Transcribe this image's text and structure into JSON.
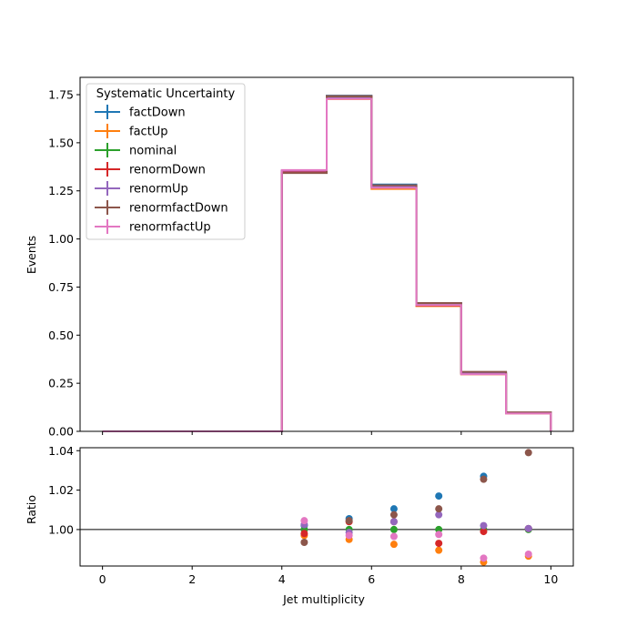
{
  "colors": {
    "factDown": "#1f77b4",
    "factUp": "#ff7f0e",
    "nominal": "#2ca02c",
    "renormDown": "#d62728",
    "renormUp": "#9467bd",
    "renormfactDown": "#8c564b",
    "renormfactUp": "#e377c2"
  },
  "chart_data": [
    {
      "type": "line",
      "subtype": "step-histogram",
      "xlabel": "",
      "ylabel": "Events",
      "xlim": [
        -0.5,
        10.5
      ],
      "ylim": [
        0,
        1.84
      ],
      "yticks": [
        0.0,
        0.25,
        0.5,
        0.75,
        1.0,
        1.25,
        1.5,
        1.75
      ],
      "ytick_labels": [
        "0.00",
        "0.25",
        "0.50",
        "0.75",
        "1.00",
        "1.25",
        "1.50",
        "1.75"
      ],
      "bin_edges": [
        0,
        1,
        2,
        3,
        4,
        5,
        6,
        7,
        8,
        9,
        10
      ],
      "legend": {
        "title": "Systematic Uncertainty",
        "placement": "top-left"
      },
      "series": [
        {
          "name": "factDown",
          "values": [
            0,
            0,
            0,
            0,
            1.355,
            1.745,
            1.283,
            0.667,
            0.307,
            0.097
          ]
        },
        {
          "name": "factUp",
          "values": [
            0,
            0,
            0,
            0,
            1.348,
            1.727,
            1.26,
            0.651,
            0.296,
            0.093
          ]
        },
        {
          "name": "nominal",
          "values": [
            0,
            0,
            0,
            0,
            1.352,
            1.735,
            1.27,
            0.659,
            0.301,
            0.095
          ]
        },
        {
          "name": "renormDown",
          "values": [
            0,
            0,
            0,
            0,
            1.349,
            1.742,
            1.275,
            0.654,
            0.301,
            0.096
          ]
        },
        {
          "name": "renormUp",
          "values": [
            0,
            0,
            0,
            0,
            1.355,
            1.732,
            1.275,
            0.665,
            0.302,
            0.095
          ]
        },
        {
          "name": "renormfactDown",
          "values": [
            0,
            0,
            0,
            0,
            1.343,
            1.743,
            1.279,
            0.667,
            0.309,
            0.099
          ]
        },
        {
          "name": "renormfactUp",
          "values": [
            0,
            0,
            0,
            0,
            1.358,
            1.728,
            1.266,
            0.656,
            0.297,
            0.093
          ]
        }
      ]
    },
    {
      "type": "scatter",
      "xlabel": "Jet multiplicity",
      "ylabel": "Ratio",
      "xlim": [
        -0.5,
        10.5
      ],
      "ylim": [
        0.9815,
        1.0415
      ],
      "xticks": [
        0,
        2,
        4,
        6,
        8,
        10
      ],
      "xtick_labels": [
        "0",
        "2",
        "4",
        "6",
        "8",
        "10"
      ],
      "yticks": [
        1.0,
        1.02,
        1.04
      ],
      "ytick_labels": [
        "1.00",
        "1.02",
        "1.04"
      ],
      "reference_line": 1.0,
      "x": [
        4.5,
        5.5,
        6.5,
        7.5,
        8.5,
        9.5
      ],
      "series": [
        {
          "name": "factDown",
          "values": [
            1.002,
            1.0055,
            1.0105,
            1.017,
            1.027,
            1.0005
          ]
        },
        {
          "name": "factUp",
          "values": [
            0.997,
            0.995,
            0.9925,
            0.9895,
            0.9835,
            0.9865
          ]
        },
        {
          "name": "nominal",
          "values": [
            1.0,
            1.0,
            1.0,
            1.0,
            1.0,
            1.0
          ]
        },
        {
          "name": "renormDown",
          "values": [
            0.998,
            1.004,
            1.004,
            0.993,
            0.999,
            1.0005
          ]
        },
        {
          "name": "renormUp",
          "values": [
            1.0025,
            0.9985,
            1.004,
            1.0075,
            1.002,
            1.0005
          ]
        },
        {
          "name": "renormfactDown",
          "values": [
            0.9935,
            1.0045,
            1.0075,
            1.0105,
            1.0255,
            1.039
          ]
        },
        {
          "name": "renormfactUp",
          "values": [
            1.0045,
            0.997,
            0.9965,
            0.9975,
            0.9855,
            0.9875
          ]
        }
      ]
    }
  ]
}
